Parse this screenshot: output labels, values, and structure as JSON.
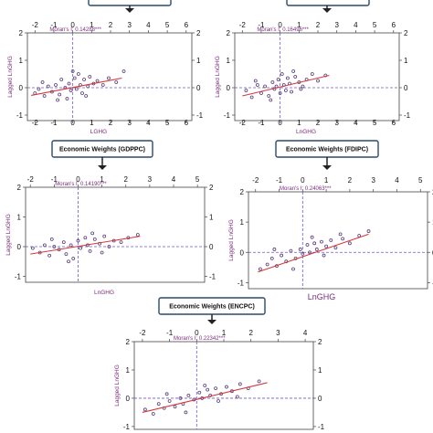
{
  "colors": {
    "point": "#5a3a7a",
    "fit_line": "#d43a3a",
    "guide": "#6a5acd",
    "frame": "#444444",
    "box_border": "#2b4a6a",
    "axis_label": "#7a2b7a"
  },
  "chart_data": [
    {
      "type": "scatter",
      "box_label": "",
      "moran": "Moran's I: 0.14288***",
      "xlabel": "LGHG",
      "ylabel": "Lagged LnGHG",
      "xlim": [
        -2.4,
        6.3
      ],
      "ylim": [
        -1.2,
        2.0
      ],
      "xticks": [
        -2,
        -1,
        0,
        1,
        2,
        3,
        4,
        5,
        6
      ],
      "yticks": [
        -1,
        0,
        1,
        2
      ],
      "x_zero": 0,
      "y_zero": 0,
      "fit": [
        [
          -2.2,
          -0.28
        ],
        [
          2.6,
          0.35
        ]
      ],
      "points": [
        [
          -2.0,
          -0.2
        ],
        [
          -1.8,
          -0.05
        ],
        [
          -1.5,
          -0.3
        ],
        [
          -1.3,
          0.05
        ],
        [
          -1.1,
          -0.15
        ],
        [
          -0.9,
          0.1
        ],
        [
          -0.7,
          -0.25
        ],
        [
          -0.6,
          0.3
        ],
        [
          -0.4,
          0.0
        ],
        [
          -0.3,
          -0.4
        ],
        [
          -0.2,
          0.15
        ],
        [
          -0.1,
          -0.1
        ],
        [
          0.1,
          0.35
        ],
        [
          0.2,
          -0.05
        ],
        [
          0.3,
          0.5
        ],
        [
          0.4,
          0.1
        ],
        [
          0.5,
          -0.2
        ],
        [
          0.6,
          0.3
        ],
        [
          0.8,
          0.05
        ],
        [
          0.9,
          0.4
        ],
        [
          1.1,
          0.15
        ],
        [
          1.3,
          0.25
        ],
        [
          1.6,
          0.1
        ],
        [
          1.9,
          0.35
        ],
        [
          2.3,
          0.2
        ],
        [
          2.7,
          0.6
        ],
        [
          -1.6,
          0.2
        ],
        [
          -0.8,
          -0.45
        ],
        [
          0.0,
          0.6
        ],
        [
          0.7,
          -0.3
        ]
      ]
    },
    {
      "type": "scatter",
      "box_label": "",
      "moran": "Moran's I: 0.16496***",
      "xlabel": "LnGHG",
      "ylabel": "Lagged LnGHG",
      "xlim": [
        -2.4,
        6.3
      ],
      "ylim": [
        -1.2,
        2.0
      ],
      "xticks": [
        -2,
        -1,
        0,
        1,
        2,
        3,
        4,
        5,
        6
      ],
      "yticks": [
        -1,
        0,
        1,
        2
      ],
      "x_zero": 0,
      "y_zero": 0,
      "fit": [
        [
          -2.0,
          -0.3
        ],
        [
          2.6,
          0.45
        ]
      ],
      "points": [
        [
          -1.8,
          -0.1
        ],
        [
          -1.5,
          -0.35
        ],
        [
          -1.2,
          0.1
        ],
        [
          -1.0,
          -0.2
        ],
        [
          -0.8,
          0.05
        ],
        [
          -0.6,
          -0.3
        ],
        [
          -0.4,
          0.2
        ],
        [
          -0.3,
          -0.05
        ],
        [
          -0.1,
          0.3
        ],
        [
          0.0,
          -0.2
        ],
        [
          0.1,
          0.5
        ],
        [
          0.2,
          0.1
        ],
        [
          0.3,
          -0.1
        ],
        [
          0.4,
          0.35
        ],
        [
          0.5,
          0.15
        ],
        [
          0.6,
          -0.15
        ],
        [
          0.8,
          0.4
        ],
        [
          1.0,
          0.2
        ],
        [
          1.2,
          0.05
        ],
        [
          1.4,
          0.3
        ],
        [
          1.7,
          0.5
        ],
        [
          2.0,
          0.25
        ],
        [
          2.4,
          0.45
        ],
        [
          -1.3,
          0.25
        ],
        [
          -0.5,
          -0.45
        ],
        [
          0.7,
          0.6
        ],
        [
          1.1,
          -0.05
        ],
        [
          -0.2,
          0.05
        ]
      ]
    },
    {
      "type": "scatter",
      "box_label": "Economic Weights (GDPPC)",
      "moran": "Moran's I: 0.14190***",
      "xlabel": "LnGHG",
      "ylabel": "Lagged LnGHG",
      "xlim": [
        -2.2,
        5.3
      ],
      "ylim": [
        -1.2,
        2.0
      ],
      "xticks": [
        -2,
        -1,
        0,
        1,
        2,
        3,
        4,
        5
      ],
      "yticks": [
        -1,
        0,
        1,
        2
      ],
      "x_zero": 0,
      "y_zero": 0,
      "fit": [
        [
          -2.0,
          -0.25
        ],
        [
          2.6,
          0.35
        ]
      ],
      "points": [
        [
          -1.9,
          -0.05
        ],
        [
          -1.6,
          -0.2
        ],
        [
          -1.4,
          0.05
        ],
        [
          -1.2,
          -0.3
        ],
        [
          -1.0,
          0.0
        ],
        [
          -0.8,
          -0.1
        ],
        [
          -0.6,
          0.15
        ],
        [
          -0.5,
          -0.25
        ],
        [
          -0.3,
          0.05
        ],
        [
          -0.2,
          -0.4
        ],
        [
          0.0,
          0.2
        ],
        [
          0.1,
          -0.05
        ],
        [
          0.3,
          0.3
        ],
        [
          0.4,
          0.05
        ],
        [
          0.5,
          -0.15
        ],
        [
          0.7,
          0.25
        ],
        [
          0.9,
          0.1
        ],
        [
          1.1,
          0.35
        ],
        [
          1.3,
          0.0
        ],
        [
          1.5,
          0.2
        ],
        [
          1.8,
          0.15
        ],
        [
          2.1,
          0.3
        ],
        [
          2.5,
          0.4
        ],
        [
          -1.1,
          0.25
        ],
        [
          -0.4,
          -0.5
        ],
        [
          0.6,
          0.45
        ],
        [
          1.0,
          -0.2
        ]
      ]
    },
    {
      "type": "scatter",
      "box_label": "Economic Weights (FDIPC)",
      "moran": "Moran's I: 0.24063***",
      "xlabel": "LnGHG",
      "ylabel": "Lagged LnGHG",
      "xlim": [
        -2.3,
        5.3
      ],
      "ylim": [
        -1.2,
        2.0
      ],
      "xticks": [
        -2,
        -1,
        0,
        1,
        2,
        3,
        4,
        5
      ],
      "yticks": [
        -1,
        0,
        1,
        2
      ],
      "x_zero": 0,
      "y_zero": 0,
      "fit": [
        [
          -1.9,
          -0.65
        ],
        [
          2.8,
          0.6
        ]
      ],
      "points": [
        [
          -1.8,
          -0.55
        ],
        [
          -1.5,
          -0.4
        ],
        [
          -1.3,
          -0.2
        ],
        [
          -1.1,
          -0.45
        ],
        [
          -0.9,
          -0.1
        ],
        [
          -0.7,
          -0.3
        ],
        [
          -0.5,
          0.05
        ],
        [
          -0.3,
          -0.2
        ],
        [
          -0.1,
          0.1
        ],
        [
          0.0,
          -0.05
        ],
        [
          0.2,
          0.25
        ],
        [
          0.3,
          0.0
        ],
        [
          0.5,
          0.3
        ],
        [
          0.6,
          0.1
        ],
        [
          0.8,
          0.35
        ],
        [
          1.0,
          0.2
        ],
        [
          1.2,
          0.4
        ],
        [
          1.4,
          0.15
        ],
        [
          1.7,
          0.45
        ],
        [
          2.0,
          0.3
        ],
        [
          2.4,
          0.55
        ],
        [
          2.8,
          0.7
        ],
        [
          -1.2,
          0.1
        ],
        [
          -0.4,
          -0.55
        ],
        [
          0.9,
          -0.1
        ],
        [
          1.6,
          0.6
        ],
        [
          0.4,
          0.5
        ]
      ]
    },
    {
      "type": "scatter",
      "box_label": "Economic Weights (ENCPC)",
      "moran": "Moran's I: 0.22342***",
      "xlabel": "",
      "ylabel": "Lagged LnGHG",
      "xlim": [
        -2.3,
        4.3
      ],
      "ylim": [
        -1.1,
        2.0
      ],
      "xticks": [
        -2,
        -1,
        0,
        1,
        2,
        3,
        4
      ],
      "yticks": [
        -1,
        0,
        1,
        2
      ],
      "x_zero": 0,
      "y_zero": 0,
      "fit": [
        [
          -2.0,
          -0.5
        ],
        [
          2.6,
          0.55
        ]
      ],
      "points": [
        [
          -1.9,
          -0.4
        ],
        [
          -1.6,
          -0.55
        ],
        [
          -1.4,
          -0.2
        ],
        [
          -1.2,
          -0.35
        ],
        [
          -1.0,
          -0.1
        ],
        [
          -0.8,
          -0.3
        ],
        [
          -0.6,
          0.0
        ],
        [
          -0.5,
          -0.2
        ],
        [
          -0.3,
          0.1
        ],
        [
          -0.1,
          -0.05
        ],
        [
          0.1,
          0.2
        ],
        [
          0.2,
          0.0
        ],
        [
          0.4,
          0.3
        ],
        [
          0.5,
          0.1
        ],
        [
          0.7,
          0.35
        ],
        [
          0.9,
          0.15
        ],
        [
          1.1,
          0.4
        ],
        [
          1.3,
          0.25
        ],
        [
          1.6,
          0.5
        ],
        [
          1.9,
          0.35
        ],
        [
          2.3,
          0.6
        ],
        [
          -1.1,
          0.15
        ],
        [
          -0.4,
          -0.5
        ],
        [
          0.8,
          -0.1
        ],
        [
          1.5,
          0.05
        ],
        [
          0.3,
          0.45
        ]
      ]
    }
  ]
}
